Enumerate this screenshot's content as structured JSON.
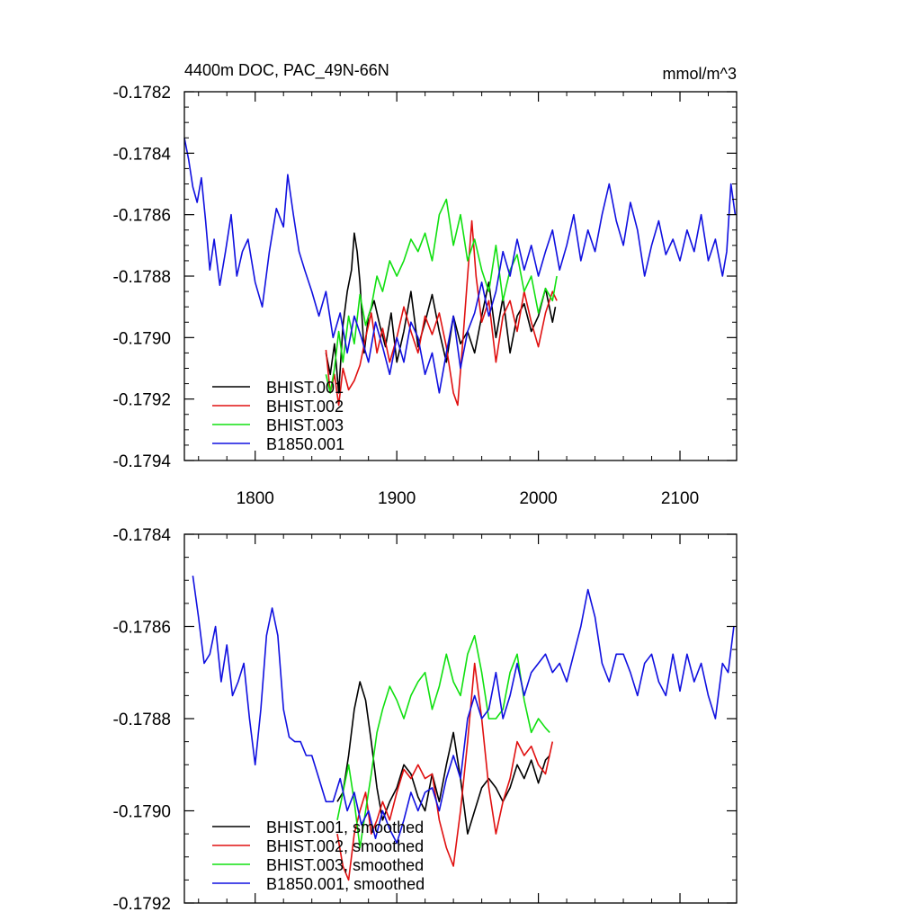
{
  "chart_data": [
    {
      "type": "line",
      "title": "4400m DOC, PAC_49N-66N",
      "units": "mmol/m^3",
      "xlim": [
        1750,
        2140
      ],
      "ylim": [
        -0.1794,
        -0.1782
      ],
      "x_ticks": [
        1800,
        1900,
        2000,
        2100
      ],
      "x_tick_labels": [
        "1800",
        "1900",
        "2000",
        "2100"
      ],
      "y_ticks": [
        -0.1794,
        -0.1792,
        -0.179,
        -0.1788,
        -0.1786,
        -0.1784,
        -0.1782
      ],
      "y_tick_labels": [
        "-0.1794",
        "-0.1792",
        "-0.1790",
        "-0.1788",
        "-0.1786",
        "-0.1784",
        "-0.1782"
      ],
      "grid": false,
      "legend": "bottom-left",
      "series": [
        {
          "name": "BHIST.001",
          "color": "#000000",
          "x": [
            1850,
            1853,
            1856,
            1859,
            1862,
            1865,
            1868,
            1870,
            1872,
            1874,
            1877,
            1880,
            1884,
            1888,
            1892,
            1896,
            1900,
            1905,
            1910,
            1915,
            1920,
            1925,
            1930,
            1935,
            1940,
            1945,
            1950,
            1955,
            1960,
            1965,
            1970,
            1975,
            1980,
            1985,
            1990,
            1995,
            2000,
            2005,
            2010,
            2012
          ],
          "y": [
            -0.17905,
            -0.17912,
            -0.17902,
            -0.17918,
            -0.17896,
            -0.17885,
            -0.17878,
            -0.17866,
            -0.17872,
            -0.17882,
            -0.17905,
            -0.17893,
            -0.17888,
            -0.17896,
            -0.17903,
            -0.17892,
            -0.17908,
            -0.17898,
            -0.17885,
            -0.17903,
            -0.17895,
            -0.17886,
            -0.17898,
            -0.17908,
            -0.17893,
            -0.17902,
            -0.17898,
            -0.17905,
            -0.17893,
            -0.17882,
            -0.179,
            -0.17887,
            -0.17905,
            -0.17893,
            -0.17889,
            -0.17898,
            -0.17893,
            -0.17884,
            -0.17895,
            -0.1789
          ]
        },
        {
          "name": "BHIST.002",
          "color": "#e01010",
          "x": [
            1850,
            1853,
            1856,
            1859,
            1862,
            1866,
            1870,
            1874,
            1878,
            1882,
            1886,
            1890,
            1895,
            1900,
            1905,
            1910,
            1915,
            1920,
            1925,
            1930,
            1935,
            1940,
            1943,
            1946,
            1950,
            1953,
            1956,
            1960,
            1965,
            1970,
            1975,
            1980,
            1985,
            1990,
            1995,
            2000,
            2005,
            2010,
            2013
          ],
          "y": [
            -0.17904,
            -0.17918,
            -0.17912,
            -0.17922,
            -0.1791,
            -0.17917,
            -0.17914,
            -0.17909,
            -0.179,
            -0.17892,
            -0.17905,
            -0.17897,
            -0.17908,
            -0.179,
            -0.1789,
            -0.17898,
            -0.17905,
            -0.17893,
            -0.17899,
            -0.17892,
            -0.17903,
            -0.17918,
            -0.17922,
            -0.17905,
            -0.1788,
            -0.17862,
            -0.1788,
            -0.17895,
            -0.17888,
            -0.17908,
            -0.17893,
            -0.17888,
            -0.17898,
            -0.17885,
            -0.17895,
            -0.17903,
            -0.17892,
            -0.17885,
            -0.17888
          ]
        },
        {
          "name": "BHIST.003",
          "color": "#10e010",
          "x": [
            1850,
            1853,
            1856,
            1859,
            1862,
            1866,
            1870,
            1874,
            1878,
            1882,
            1886,
            1890,
            1895,
            1900,
            1905,
            1910,
            1915,
            1920,
            1925,
            1930,
            1935,
            1940,
            1945,
            1950,
            1955,
            1960,
            1965,
            1970,
            1975,
            1980,
            1985,
            1990,
            1995,
            2000,
            2005,
            2010,
            2013
          ],
          "y": [
            -0.17912,
            -0.17918,
            -0.1791,
            -0.17898,
            -0.17908,
            -0.17893,
            -0.17902,
            -0.17886,
            -0.17896,
            -0.1789,
            -0.1788,
            -0.17885,
            -0.17875,
            -0.1788,
            -0.17875,
            -0.17868,
            -0.17872,
            -0.17866,
            -0.17875,
            -0.1786,
            -0.17855,
            -0.1787,
            -0.1786,
            -0.17875,
            -0.17868,
            -0.17878,
            -0.17885,
            -0.1787,
            -0.17888,
            -0.17878,
            -0.17873,
            -0.17885,
            -0.1788,
            -0.17892,
            -0.17884,
            -0.17888,
            -0.1788
          ]
        },
        {
          "name": "B1850.001",
          "color": "#1010e0",
          "x": [
            1750,
            1753,
            1756,
            1759,
            1762,
            1765,
            1768,
            1771,
            1775,
            1779,
            1783,
            1787,
            1791,
            1795,
            1800,
            1805,
            1810,
            1815,
            1820,
            1823,
            1827,
            1831,
            1835,
            1840,
            1845,
            1850,
            1855,
            1860,
            1865,
            1870,
            1875,
            1880,
            1885,
            1890,
            1895,
            1900,
            1905,
            1910,
            1915,
            1920,
            1925,
            1930,
            1935,
            1940,
            1945,
            1950,
            1955,
            1960,
            1965,
            1970,
            1975,
            1980,
            1985,
            1990,
            1995,
            2000,
            2005,
            2010,
            2015,
            2020,
            2025,
            2030,
            2035,
            2040,
            2045,
            2050,
            2055,
            2060,
            2065,
            2070,
            2075,
            2080,
            2085,
            2090,
            2095,
            2100,
            2105,
            2110,
            2115,
            2120,
            2125,
            2130,
            2133,
            2136,
            2139
          ],
          "y": [
            -0.17835,
            -0.17842,
            -0.17851,
            -0.17856,
            -0.17848,
            -0.17862,
            -0.17878,
            -0.17868,
            -0.17883,
            -0.17872,
            -0.1786,
            -0.1788,
            -0.17872,
            -0.17868,
            -0.17882,
            -0.1789,
            -0.17872,
            -0.17858,
            -0.17864,
            -0.17847,
            -0.1786,
            -0.17872,
            -0.17878,
            -0.17885,
            -0.17893,
            -0.17885,
            -0.179,
            -0.17892,
            -0.17905,
            -0.17893,
            -0.179,
            -0.17908,
            -0.17895,
            -0.17903,
            -0.17912,
            -0.179,
            -0.17908,
            -0.17895,
            -0.179,
            -0.17912,
            -0.17905,
            -0.17918,
            -0.17905,
            -0.17893,
            -0.1791,
            -0.17898,
            -0.17892,
            -0.17882,
            -0.17893,
            -0.17885,
            -0.17872,
            -0.1788,
            -0.17868,
            -0.17878,
            -0.1787,
            -0.1788,
            -0.17872,
            -0.17865,
            -0.17878,
            -0.1787,
            -0.1786,
            -0.17875,
            -0.17865,
            -0.17872,
            -0.1786,
            -0.1785,
            -0.17862,
            -0.1787,
            -0.17856,
            -0.17865,
            -0.1788,
            -0.1787,
            -0.17862,
            -0.17873,
            -0.17868,
            -0.17875,
            -0.17865,
            -0.17872,
            -0.1786,
            -0.17875,
            -0.17868,
            -0.1788,
            -0.17872,
            -0.1785,
            -0.1786
          ]
        }
      ]
    },
    {
      "type": "line",
      "xlim": [
        1750,
        2140
      ],
      "ylim": [
        -0.1792,
        -0.1784
      ],
      "x_ticks": [
        1800,
        1900,
        2000,
        2100
      ],
      "y_ticks": [
        -0.1792,
        -0.179,
        -0.1788,
        -0.1786,
        -0.1784
      ],
      "y_tick_labels": [
        "-0.1792",
        "-0.1790",
        "-0.1788",
        "-0.1786",
        "-0.1784"
      ],
      "grid": false,
      "legend": "bottom-left",
      "series": [
        {
          "name": "BHIST.001, smoothed",
          "color": "#000000",
          "x": [
            1858,
            1862,
            1866,
            1870,
            1874,
            1878,
            1882,
            1886,
            1890,
            1895,
            1900,
            1905,
            1910,
            1915,
            1920,
            1925,
            1930,
            1935,
            1940,
            1945,
            1950,
            1955,
            1960,
            1965,
            1970,
            1975,
            1980,
            1985,
            1990,
            1995,
            2000,
            2005,
            2008
          ],
          "y": [
            -0.17898,
            -0.17896,
            -0.17888,
            -0.17878,
            -0.17872,
            -0.17876,
            -0.17885,
            -0.17895,
            -0.17902,
            -0.17898,
            -0.17895,
            -0.1789,
            -0.17892,
            -0.17897,
            -0.179,
            -0.17892,
            -0.17898,
            -0.1789,
            -0.17883,
            -0.17893,
            -0.17905,
            -0.179,
            -0.17895,
            -0.17893,
            -0.17895,
            -0.17898,
            -0.17895,
            -0.1789,
            -0.17893,
            -0.17889,
            -0.17894,
            -0.17889,
            -0.17888
          ]
        },
        {
          "name": "BHIST.002, smoothed",
          "color": "#e01010",
          "x": [
            1858,
            1862,
            1866,
            1870,
            1874,
            1878,
            1882,
            1886,
            1890,
            1895,
            1900,
            1905,
            1910,
            1915,
            1920,
            1925,
            1930,
            1935,
            1940,
            1945,
            1950,
            1955,
            1960,
            1965,
            1970,
            1975,
            1980,
            1985,
            1990,
            1995,
            2000,
            2005,
            2010
          ],
          "y": [
            -0.17905,
            -0.17912,
            -0.17915,
            -0.17905,
            -0.179,
            -0.17896,
            -0.17905,
            -0.17902,
            -0.17898,
            -0.17902,
            -0.17896,
            -0.17891,
            -0.17893,
            -0.1789,
            -0.17893,
            -0.17892,
            -0.17902,
            -0.17908,
            -0.17912,
            -0.179,
            -0.17885,
            -0.17868,
            -0.1788,
            -0.17895,
            -0.17905,
            -0.17898,
            -0.17893,
            -0.17885,
            -0.17888,
            -0.17886,
            -0.1789,
            -0.17892,
            -0.17885
          ]
        },
        {
          "name": "BHIST.003, smoothed",
          "color": "#10e010",
          "x": [
            1858,
            1862,
            1866,
            1870,
            1874,
            1878,
            1882,
            1886,
            1890,
            1895,
            1900,
            1905,
            1910,
            1915,
            1920,
            1925,
            1930,
            1935,
            1940,
            1945,
            1950,
            1955,
            1960,
            1965,
            1970,
            1975,
            1980,
            1985,
            1990,
            1995,
            2000,
            2005,
            2008
          ],
          "y": [
            -0.17902,
            -0.17896,
            -0.1789,
            -0.17898,
            -0.17908,
            -0.179,
            -0.17892,
            -0.17883,
            -0.17878,
            -0.17873,
            -0.17876,
            -0.1788,
            -0.17875,
            -0.17872,
            -0.1787,
            -0.17878,
            -0.17873,
            -0.17866,
            -0.17872,
            -0.17875,
            -0.17866,
            -0.17862,
            -0.1787,
            -0.1788,
            -0.1788,
            -0.17878,
            -0.1787,
            -0.17866,
            -0.17876,
            -0.17883,
            -0.1788,
            -0.17882,
            -0.17883
          ]
        },
        {
          "name": "B1850.001, smoothed",
          "color": "#1010e0",
          "x": [
            1756,
            1760,
            1764,
            1768,
            1772,
            1776,
            1780,
            1784,
            1788,
            1792,
            1796,
            1800,
            1804,
            1808,
            1812,
            1816,
            1820,
            1824,
            1828,
            1832,
            1836,
            1840,
            1845,
            1850,
            1855,
            1860,
            1865,
            1870,
            1875,
            1880,
            1885,
            1890,
            1895,
            1900,
            1905,
            1910,
            1915,
            1920,
            1925,
            1930,
            1935,
            1940,
            1945,
            1950,
            1955,
            1960,
            1965,
            1970,
            1975,
            1980,
            1985,
            1990,
            1995,
            2000,
            2005,
            2010,
            2015,
            2020,
            2025,
            2030,
            2035,
            2040,
            2045,
            2050,
            2055,
            2060,
            2065,
            2070,
            2075,
            2080,
            2085,
            2090,
            2095,
            2100,
            2105,
            2110,
            2115,
            2120,
            2125,
            2130,
            2134,
            2138
          ],
          "y": [
            -0.17849,
            -0.17858,
            -0.17868,
            -0.17866,
            -0.1786,
            -0.17872,
            -0.17864,
            -0.17875,
            -0.17872,
            -0.17868,
            -0.1788,
            -0.1789,
            -0.17878,
            -0.17862,
            -0.17856,
            -0.17862,
            -0.17878,
            -0.17884,
            -0.17885,
            -0.17885,
            -0.17888,
            -0.17888,
            -0.17893,
            -0.17898,
            -0.17898,
            -0.17893,
            -0.179,
            -0.17896,
            -0.17903,
            -0.179,
            -0.17906,
            -0.179,
            -0.17904,
            -0.17907,
            -0.17902,
            -0.17896,
            -0.179,
            -0.17896,
            -0.17895,
            -0.179,
            -0.17893,
            -0.17888,
            -0.17893,
            -0.1788,
            -0.17875,
            -0.1788,
            -0.17878,
            -0.1787,
            -0.1788,
            -0.17875,
            -0.17868,
            -0.17875,
            -0.1787,
            -0.17868,
            -0.17866,
            -0.1787,
            -0.17868,
            -0.17872,
            -0.17866,
            -0.1786,
            -0.17852,
            -0.17858,
            -0.17868,
            -0.17872,
            -0.17866,
            -0.17866,
            -0.1787,
            -0.17875,
            -0.17868,
            -0.17866,
            -0.17872,
            -0.17875,
            -0.17866,
            -0.17874,
            -0.17866,
            -0.17872,
            -0.17868,
            -0.17875,
            -0.1788,
            -0.17868,
            -0.1787,
            -0.1786
          ]
        }
      ]
    }
  ]
}
